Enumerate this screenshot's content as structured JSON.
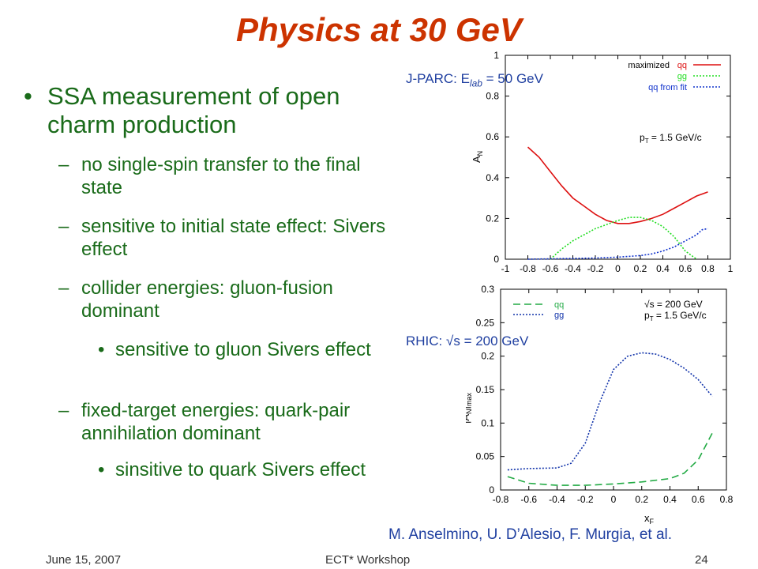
{
  "slide": {
    "title": "Physics at 30 GeV",
    "bullets": [
      {
        "mark": "•",
        "text": "SSA measurement of open charm production"
      },
      {
        "mark": "–",
        "text": "no single-spin transfer to the final state"
      },
      {
        "mark": "–",
        "text": "sensitive to initial state effect: Sivers effect"
      },
      {
        "mark": "–",
        "text": "collider energies: gluon-fusion dominant"
      },
      {
        "mark": "•",
        "text": "sensitive to gluon Sivers effect"
      },
      {
        "mark": "–",
        "text": "fixed-target energies: quark-pair annihilation dominant"
      },
      {
        "mark": "•",
        "text": "sinsitive to quark Sivers effect"
      }
    ],
    "annotation_top": {
      "prefix": "J-PARC: E",
      "sub": "lab",
      "suffix": " = 50 GeV"
    },
    "annotation_bottom": {
      "prefix": "RHIC: ",
      "sqrt": "√",
      "suffix": "s = 200 GeV"
    },
    "citation": "M. Anselmino, U. D’Alesio, F. Murgia, et al.",
    "footer": {
      "date": "June 15, 2007",
      "event": "ECT* Workshop",
      "page": "24"
    }
  },
  "chart_data": [
    {
      "type": "line",
      "ylabel_main": "A",
      "ylabel_sub": "N",
      "xlim": [
        -1,
        1
      ],
      "ylim": [
        0,
        1
      ],
      "xticks": [
        "-1",
        "-0.8",
        "-0.6",
        "-0.4",
        "-0.2",
        "0",
        "0.2",
        "0.4",
        "0.6",
        "0.8",
        "1"
      ],
      "yticks": [
        "0",
        "0.2",
        "0.4",
        "0.6",
        "0.8",
        "1"
      ],
      "legend_title": "maximized",
      "legend_position": "top-right",
      "annotation_main": "p",
      "annotation_sub": "T",
      "annotation_suffix": " = 1.5 GeV/c",
      "colors": {
        "qq": "#dd1111",
        "gg": "#22dd22",
        "qq_fit": "#1133cc"
      },
      "series": [
        {
          "name": "qq",
          "key": "qq",
          "x": [
            -0.8,
            -0.7,
            -0.6,
            -0.5,
            -0.4,
            -0.3,
            -0.2,
            -0.1,
            0,
            0.1,
            0.2,
            0.3,
            0.4,
            0.5,
            0.6,
            0.7,
            0.8
          ],
          "y": [
            0.55,
            0.5,
            0.43,
            0.36,
            0.3,
            0.26,
            0.22,
            0.19,
            0.175,
            0.175,
            0.185,
            0.2,
            0.22,
            0.25,
            0.28,
            0.31,
            0.33
          ]
        },
        {
          "name": "gg",
          "key": "gg",
          "x": [
            -0.6,
            -0.5,
            -0.4,
            -0.3,
            -0.2,
            -0.1,
            0,
            0.1,
            0.2,
            0.3,
            0.4,
            0.5,
            0.6,
            0.7
          ],
          "y": [
            0,
            0.05,
            0.09,
            0.12,
            0.15,
            0.17,
            0.19,
            0.205,
            0.205,
            0.19,
            0.16,
            0.11,
            0.04,
            0
          ]
        },
        {
          "name": "qq from fit",
          "key": "qq_fit",
          "x": [
            -0.8,
            -0.6,
            -0.4,
            -0.2,
            0,
            0.2,
            0.3,
            0.4,
            0.5,
            0.6,
            0.7,
            0.75,
            0.8
          ],
          "y": [
            0,
            0.002,
            0.004,
            0.006,
            0.01,
            0.018,
            0.026,
            0.04,
            0.06,
            0.09,
            0.12,
            0.145,
            0.15
          ]
        }
      ]
    },
    {
      "type": "line",
      "ylabel_main": "|A",
      "ylabel_sub": "N",
      "ylabel_suffix": "|",
      "ylabel_sub2": "max",
      "xlabel_main": "x",
      "xlabel_sub": "F",
      "xlim": [
        -0.8,
        0.8
      ],
      "ylim": [
        0,
        0.3
      ],
      "xticks": [
        "-0.8",
        "-0.6",
        "-0.4",
        "-0.2",
        "0",
        "0.2",
        "0.4",
        "0.6",
        "0.8"
      ],
      "yticks": [
        "0",
        "0.05",
        "0.1",
        "0.15",
        "0.2",
        "0.25",
        "0.3"
      ],
      "legend_position": "top-left",
      "annotation_line1": "√s = 200 GeV",
      "annotation_line2_main": "p",
      "annotation_line2_sub": "T",
      "annotation_line2_suffix": " = 1.5 GeV/c",
      "colors": {
        "qq": "#22aa44",
        "gg": "#1133aa"
      },
      "series": [
        {
          "name": "qq",
          "key": "qq",
          "x": [
            -0.75,
            -0.6,
            -0.4,
            -0.2,
            0,
            0.2,
            0.4,
            0.5,
            0.6,
            0.7
          ],
          "y": [
            0.02,
            0.01,
            0.007,
            0.007,
            0.009,
            0.012,
            0.017,
            0.025,
            0.045,
            0.085
          ]
        },
        {
          "name": "gg",
          "key": "gg",
          "x": [
            -0.75,
            -0.6,
            -0.4,
            -0.3,
            -0.2,
            -0.1,
            0,
            0.1,
            0.2,
            0.3,
            0.4,
            0.5,
            0.6,
            0.7
          ],
          "y": [
            0.03,
            0.032,
            0.033,
            0.04,
            0.07,
            0.13,
            0.18,
            0.2,
            0.205,
            0.203,
            0.195,
            0.182,
            0.165,
            0.14
          ]
        }
      ]
    }
  ]
}
